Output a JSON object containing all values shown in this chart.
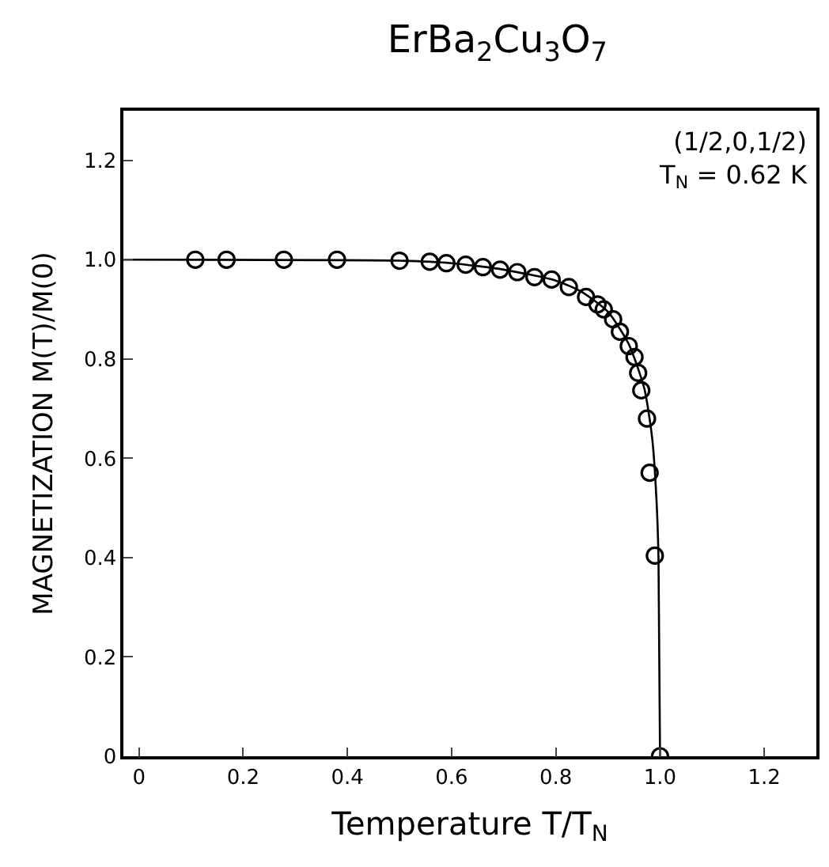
{
  "chart_data": {
    "type": "scatter",
    "title": "ErBa$_{2}$Cu$_{3}$O$_{7}$",
    "xlabel": "Temperature T/T$_{N}$",
    "ylabel": "MAGNETIZATION M(T)/M(0)",
    "annotations": [
      "(1/2,0,1/2)",
      "T$_{N}$ = 0.62 K"
    ],
    "x": [
      0.108,
      0.168,
      0.278,
      0.38,
      0.5,
      0.558,
      0.59,
      0.627,
      0.66,
      0.693,
      0.726,
      0.759,
      0.792,
      0.825,
      0.858,
      0.88,
      0.892,
      0.91,
      0.923,
      0.94,
      0.951,
      0.958,
      0.964,
      0.975,
      0.98,
      0.99,
      1.0
    ],
    "series": [
      {
        "color": "#000000",
        "marker": "circle",
        "values": [
          1.0,
          1.0,
          1.0,
          1.0,
          0.998,
          0.996,
          0.993,
          0.99,
          0.985,
          0.98,
          0.975,
          0.965,
          0.96,
          0.945,
          0.925,
          0.91,
          0.9,
          0.88,
          0.855,
          0.826,
          0.804,
          0.772,
          0.737,
          0.68,
          0.571,
          0.404,
          0.0
        ]
      },
      {
        "type": "line",
        "color": "#000000",
        "line_style": "solid",
        "x": [
          -0.03,
          0.5,
          0.6,
          0.7,
          0.8,
          0.85,
          0.9,
          0.94,
          0.97,
          0.985,
          0.993,
          0.997,
          1.0
        ],
        "values": [
          1.0,
          0.998,
          0.993,
          0.98,
          0.958,
          0.935,
          0.895,
          0.83,
          0.74,
          0.64,
          0.52,
          0.4,
          0.0
        ]
      }
    ],
    "xlim": [
      -0.03,
      1.3
    ],
    "ylim": [
      0,
      1.3
    ],
    "xticks": [
      0,
      0.2,
      0.4,
      0.6,
      0.8,
      {
        "value": 1,
        "label": "1.0"
      },
      1.2
    ],
    "yticks": [
      0,
      0.2,
      0.4,
      0.6,
      0.8,
      {
        "value": 1,
        "label": "1.0"
      },
      1.2
    ],
    "legend": false
  }
}
